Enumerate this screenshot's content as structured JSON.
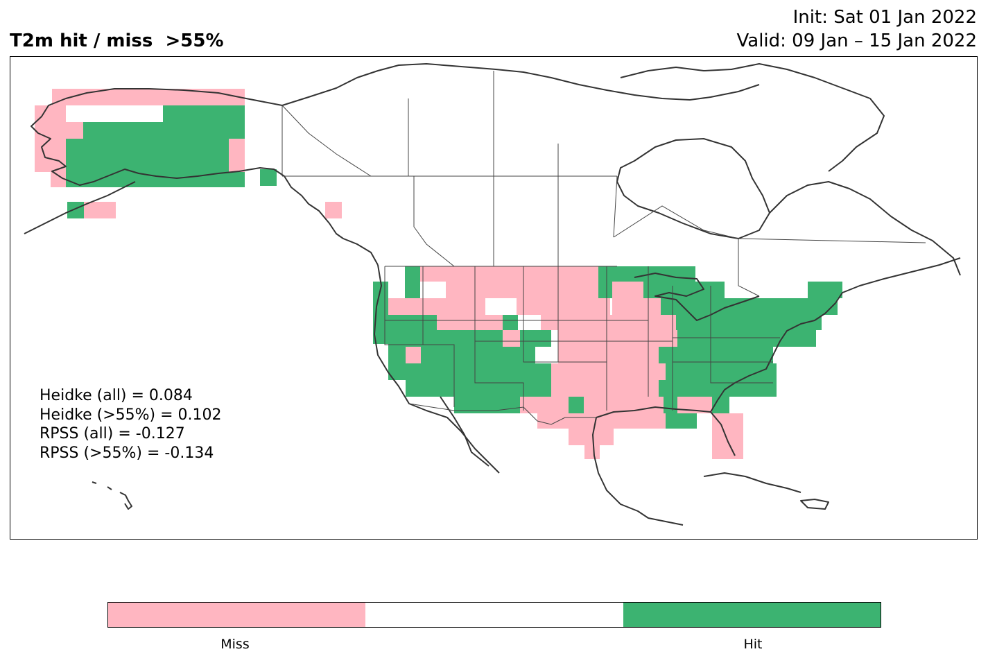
{
  "header": {
    "title": "T2m hit / miss  >55%",
    "init": "Init: Sat 01 Jan 2022",
    "valid": "Valid: 09 Jan – 15 Jan 2022"
  },
  "stats": {
    "heidke_all": "Heidke (all) = 0.084",
    "heidke_55": "Heidke (>55%) = 0.102",
    "rpss_all": "RPSS (all) = -0.127",
    "rpss_55": "RPSS (>55%) = -0.134"
  },
  "colorbar": {
    "colors": [
      "#ffb6c1",
      "#ffffff",
      "#3cb371"
    ],
    "miss_label": "Miss",
    "hit_label": "Hit"
  },
  "colors": {
    "miss": "#ffb6c1",
    "hit": "#3cb371",
    "coastline": "#333333",
    "border": "#444444"
  }
}
